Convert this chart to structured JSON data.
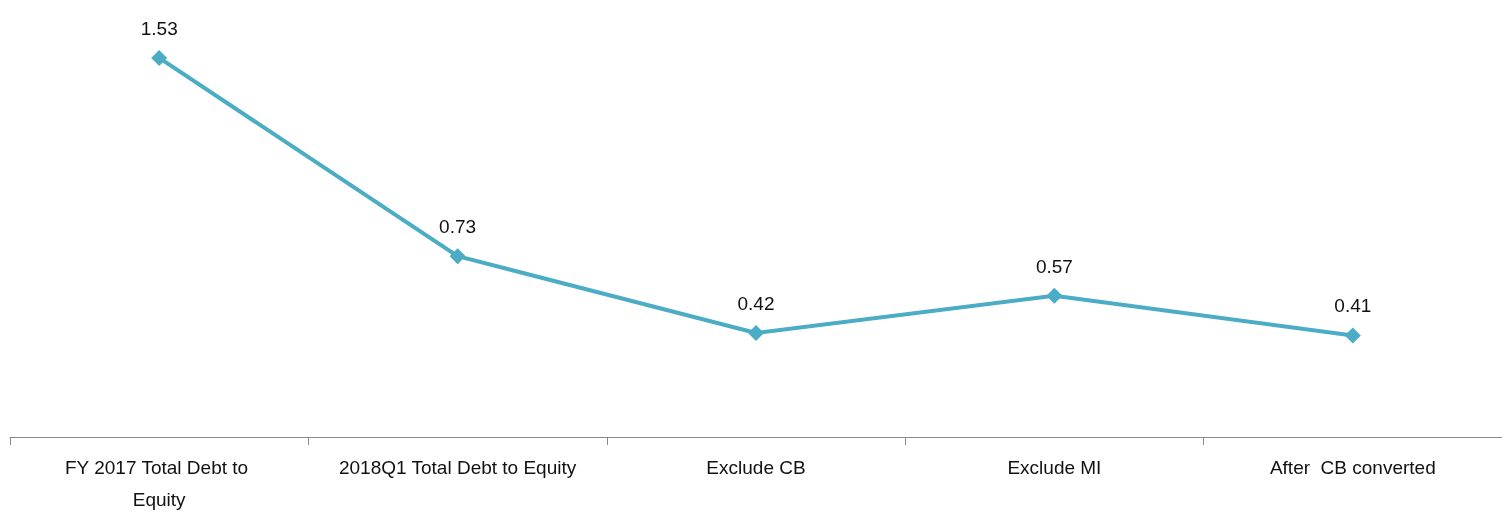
{
  "chart_data": {
    "type": "line",
    "categories": [
      "FY 2017 Total Debt to Equity",
      "2018Q1 Total Debt to Equity",
      "Exclude CB",
      "Exclude MI",
      "After  CB converted"
    ],
    "series": [
      {
        "color": "#4bacc6",
        "values": [
          1.53,
          0.73,
          0.42,
          0.57,
          0.41
        ]
      }
    ],
    "data_labels": true,
    "marker": "diamond",
    "line_style": "solid",
    "tick_labels": "x"
  }
}
